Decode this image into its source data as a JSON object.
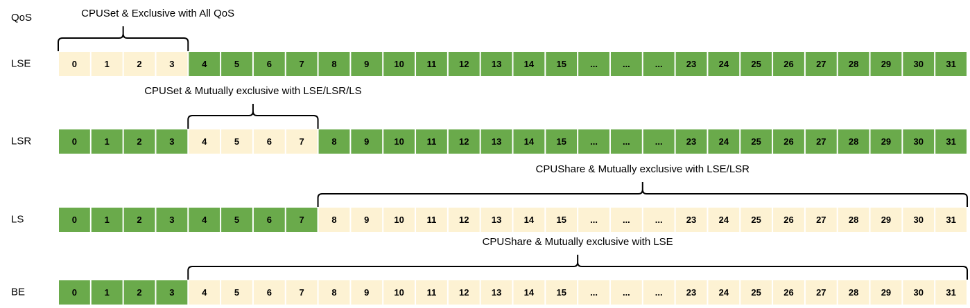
{
  "header": {
    "qos_label": "QoS"
  },
  "rows": [
    {
      "label": "LSE",
      "annotation": "CPUSet & Exclusive with All QoS",
      "cells": [
        "0",
        "1",
        "2",
        "3",
        "4",
        "5",
        "6",
        "7",
        "8",
        "9",
        "10",
        "11",
        "12",
        "13",
        "14",
        "15",
        "...",
        "...",
        "...",
        "23",
        "24",
        "25",
        "26",
        "27",
        "28",
        "29",
        "30",
        "31"
      ],
      "colors": [
        "#fdf2d3",
        "#fdf2d3",
        "#fdf2d3",
        "#fdf2d3",
        "#6aaa4b",
        "#6aaa4b",
        "#6aaa4b",
        "#6aaa4b",
        "#6aaa4b",
        "#6aaa4b",
        "#6aaa4b",
        "#6aaa4b",
        "#6aaa4b",
        "#6aaa4b",
        "#6aaa4b",
        "#6aaa4b",
        "#6aaa4b",
        "#6aaa4b",
        "#6aaa4b",
        "#6aaa4b",
        "#6aaa4b",
        "#6aaa4b",
        "#6aaa4b",
        "#6aaa4b",
        "#6aaa4b",
        "#6aaa4b",
        "#6aaa4b",
        "#6aaa4b"
      ]
    },
    {
      "label": "LSR",
      "annotation": "CPUSet & Mutually exclusive with LSE/LSR/LS",
      "cells": [
        "0",
        "1",
        "2",
        "3",
        "4",
        "5",
        "6",
        "7",
        "8",
        "9",
        "10",
        "11",
        "12",
        "13",
        "14",
        "15",
        "...",
        "...",
        "...",
        "23",
        "24",
        "25",
        "26",
        "27",
        "28",
        "29",
        "30",
        "31"
      ],
      "colors": [
        "#6aaa4b",
        "#6aaa4b",
        "#6aaa4b",
        "#6aaa4b",
        "#fdf2d3",
        "#fdf2d3",
        "#fdf2d3",
        "#fdf2d3",
        "#6aaa4b",
        "#6aaa4b",
        "#6aaa4b",
        "#6aaa4b",
        "#6aaa4b",
        "#6aaa4b",
        "#6aaa4b",
        "#6aaa4b",
        "#6aaa4b",
        "#6aaa4b",
        "#6aaa4b",
        "#6aaa4b",
        "#6aaa4b",
        "#6aaa4b",
        "#6aaa4b",
        "#6aaa4b",
        "#6aaa4b",
        "#6aaa4b",
        "#6aaa4b",
        "#6aaa4b"
      ]
    },
    {
      "label": "LS",
      "annotation": "CPUShare & Mutually exclusive with LSE/LSR",
      "cells": [
        "0",
        "1",
        "2",
        "3",
        "4",
        "5",
        "6",
        "7",
        "8",
        "9",
        "10",
        "11",
        "12",
        "13",
        "14",
        "15",
        "...",
        "...",
        "...",
        "23",
        "24",
        "25",
        "26",
        "27",
        "28",
        "29",
        "30",
        "31"
      ],
      "colors": [
        "#6aaa4b",
        "#6aaa4b",
        "#6aaa4b",
        "#6aaa4b",
        "#6aaa4b",
        "#6aaa4b",
        "#6aaa4b",
        "#6aaa4b",
        "#fdf2d3",
        "#fdf2d3",
        "#fdf2d3",
        "#fdf2d3",
        "#fdf2d3",
        "#fdf2d3",
        "#fdf2d3",
        "#fdf2d3",
        "#fdf2d3",
        "#fdf2d3",
        "#fdf2d3",
        "#fdf2d3",
        "#fdf2d3",
        "#fdf2d3",
        "#fdf2d3",
        "#fdf2d3",
        "#fdf2d3",
        "#fdf2d3",
        "#fdf2d3",
        "#fdf2d3"
      ]
    },
    {
      "label": "BE",
      "annotation": "CPUShare & Mutually exclusive with LSE",
      "cells": [
        "0",
        "1",
        "2",
        "3",
        "4",
        "5",
        "6",
        "7",
        "8",
        "9",
        "10",
        "11",
        "12",
        "13",
        "14",
        "15",
        "...",
        "...",
        "...",
        "23",
        "24",
        "25",
        "26",
        "27",
        "28",
        "29",
        "30",
        "31"
      ],
      "colors": [
        "#6aaa4b",
        "#6aaa4b",
        "#6aaa4b",
        "#6aaa4b",
        "#fdf2d3",
        "#fdf2d3",
        "#fdf2d3",
        "#fdf2d3",
        "#fdf2d3",
        "#fdf2d3",
        "#fdf2d3",
        "#fdf2d3",
        "#fdf2d3",
        "#fdf2d3",
        "#fdf2d3",
        "#fdf2d3",
        "#fdf2d3",
        "#fdf2d3",
        "#fdf2d3",
        "#fdf2d3",
        "#fdf2d3",
        "#fdf2d3",
        "#fdf2d3",
        "#fdf2d3",
        "#fdf2d3",
        "#fdf2d3",
        "#fdf2d3",
        "#fdf2d3"
      ]
    }
  ]
}
